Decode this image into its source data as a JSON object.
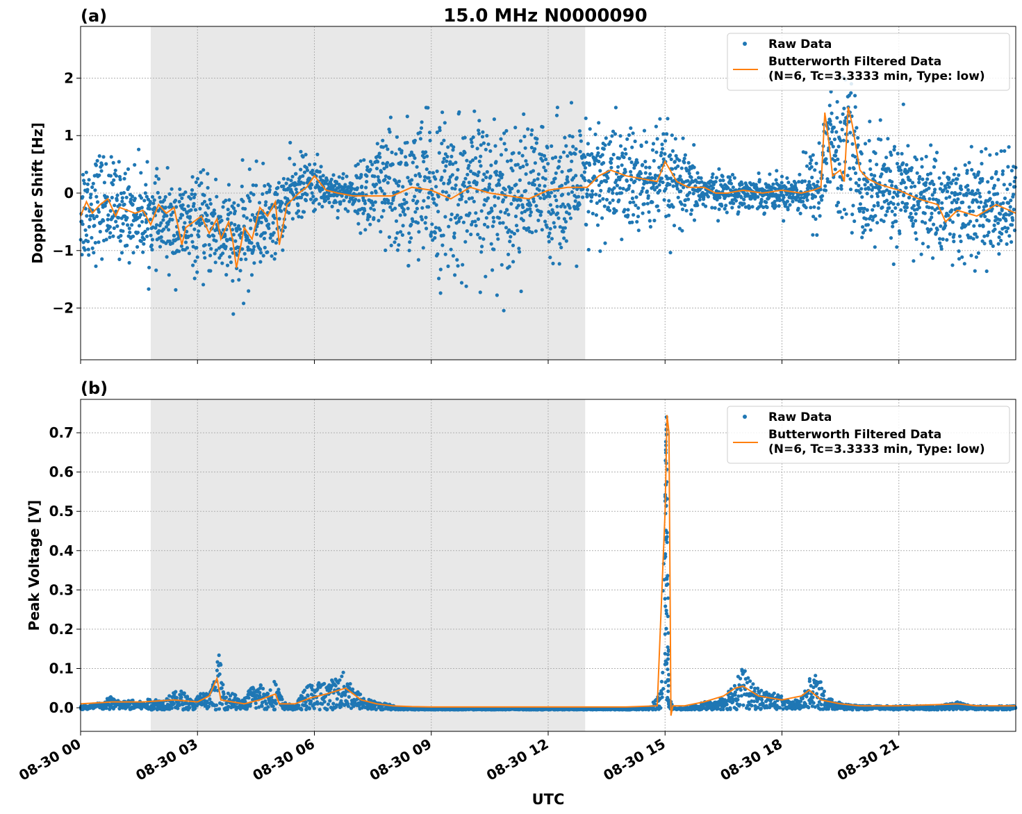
{
  "figure": {
    "title": "15.0 MHz N0000090",
    "xlabel": "UTC"
  },
  "colors": {
    "raw": "#1f77b4",
    "filtered": "#ff7f0e",
    "shade": "#e8e8e8",
    "grid": "#b0b0b0"
  },
  "chart_data": [
    {
      "type": "scatter",
      "panel_label": "(a)",
      "title": "15.0 MHz N0000090",
      "xlabel": "",
      "ylabel": "Doppler Shift [Hz]",
      "x_unit": "hours UTC since 08-30 00:00",
      "xlim": [
        0,
        24
      ],
      "ylim": [
        -2.9,
        2.9
      ],
      "yticks": [
        -2,
        -1,
        0,
        1,
        2
      ],
      "ytick_labels": [
        "−2",
        "−1",
        "0",
        "1",
        "2"
      ],
      "grid": true,
      "legend_position": "top-right",
      "shaded_interval_hours": [
        1.8,
        12.95
      ],
      "series": [
        {
          "name": "Raw Data",
          "style": "points",
          "envelope_note": "dense point cloud around filtered curve",
          "x": [
            0,
            0.5,
            1,
            1.5,
            2,
            2.5,
            3,
            3.5,
            4,
            4.5,
            5,
            5.5,
            6,
            6.5,
            7,
            7.5,
            8,
            9,
            10,
            11,
            12,
            13,
            13.5,
            14,
            14.5,
            15,
            15.5,
            16,
            17,
            18,
            18.5,
            19,
            19.2,
            19.5,
            19.7,
            20,
            21,
            22,
            23,
            24
          ],
          "center": [
            -0.3,
            -0.15,
            -0.3,
            -0.35,
            -0.5,
            -0.6,
            -0.55,
            -0.6,
            -0.9,
            -0.5,
            -0.45,
            0.1,
            0.15,
            0.05,
            0.0,
            0.0,
            0.0,
            0.0,
            -0.05,
            0.0,
            0.05,
            0.1,
            0.3,
            0.2,
            0.15,
            0.25,
            0.05,
            0.05,
            0.0,
            0.0,
            0.05,
            0.1,
            1.1,
            0.3,
            1.3,
            0.1,
            0.0,
            -0.2,
            -0.3,
            -0.2
          ],
          "spread": [
            0.9,
            0.8,
            0.7,
            0.7,
            0.6,
            0.7,
            0.7,
            0.8,
            0.8,
            0.8,
            0.6,
            0.5,
            0.4,
            0.3,
            0.3,
            0.8,
            1.1,
            1.2,
            1.2,
            1.1,
            1.0,
            1.0,
            0.9,
            0.9,
            0.8,
            0.8,
            0.6,
            0.3,
            0.25,
            0.25,
            0.4,
            0.8,
            1.0,
            0.9,
            1.0,
            0.9,
            0.8,
            0.8,
            0.8,
            0.8
          ]
        },
        {
          "name": "Butterworth Filtered Data",
          "name_line2": "(N=6, Tc=3.3333 min, Type: low)",
          "style": "line",
          "x": [
            0,
            0.15,
            0.3,
            0.5,
            0.7,
            0.9,
            1.0,
            1.2,
            1.4,
            1.6,
            1.8,
            2.0,
            2.2,
            2.4,
            2.6,
            2.7,
            2.9,
            3.1,
            3.3,
            3.5,
            3.6,
            3.8,
            3.9,
            4.0,
            4.2,
            4.4,
            4.6,
            4.8,
            5.0,
            5.1,
            5.3,
            5.6,
            5.8,
            6.0,
            6.3,
            6.6,
            7.0,
            7.5,
            8.0,
            8.5,
            9.0,
            9.5,
            10.0,
            10.5,
            11.0,
            11.5,
            12.0,
            12.5,
            13.0,
            13.3,
            13.6,
            14.0,
            14.4,
            14.8,
            15.0,
            15.3,
            15.6,
            16.0,
            16.3,
            16.6,
            17.0,
            17.5,
            18.0,
            18.5,
            18.8,
            19.0,
            19.1,
            19.2,
            19.3,
            19.5,
            19.6,
            19.7,
            19.8,
            20.0,
            20.2,
            20.5,
            21.0,
            21.5,
            22.0,
            22.2,
            22.5,
            23.0,
            23.5,
            24.0
          ],
          "y": [
            -0.4,
            -0.15,
            -0.35,
            -0.2,
            -0.1,
            -0.4,
            -0.25,
            -0.3,
            -0.35,
            -0.3,
            -0.55,
            -0.2,
            -0.35,
            -0.25,
            -0.9,
            -0.6,
            -0.5,
            -0.4,
            -0.7,
            -0.45,
            -0.8,
            -0.5,
            -0.8,
            -1.3,
            -0.6,
            -0.8,
            -0.25,
            -0.4,
            -0.15,
            -0.9,
            -0.2,
            0.0,
            0.1,
            0.3,
            0.05,
            0.0,
            -0.05,
            -0.05,
            -0.05,
            0.1,
            0.05,
            -0.1,
            0.1,
            0.0,
            -0.05,
            -0.1,
            0.05,
            0.1,
            0.1,
            0.3,
            0.4,
            0.3,
            0.25,
            0.2,
            0.55,
            0.2,
            0.1,
            0.1,
            0.0,
            0.0,
            0.05,
            0.0,
            0.05,
            0.0,
            0.05,
            0.1,
            1.4,
            0.9,
            0.3,
            0.4,
            0.2,
            1.5,
            1.2,
            0.4,
            0.25,
            0.15,
            0.05,
            -0.1,
            -0.2,
            -0.5,
            -0.3,
            -0.4,
            -0.2,
            -0.35
          ]
        }
      ]
    },
    {
      "type": "scatter",
      "panel_label": "(b)",
      "title": "",
      "xlabel": "UTC",
      "ylabel": "Peak Voltage [V]",
      "x_unit": "hours UTC since 08-30 00:00",
      "xlim": [
        0,
        24
      ],
      "ylim": [
        -0.06,
        0.785
      ],
      "yticks": [
        0.0,
        0.1,
        0.2,
        0.3,
        0.4,
        0.5,
        0.6,
        0.7
      ],
      "ytick_labels": [
        "0.0",
        "0.1",
        "0.2",
        "0.3",
        "0.4",
        "0.5",
        "0.6",
        "0.7"
      ],
      "xticks": [
        0,
        3,
        6,
        9,
        12,
        15,
        18,
        21
      ],
      "xtick_labels": [
        "08-30 00",
        "08-30 03",
        "08-30 06",
        "08-30 09",
        "08-30 12",
        "08-30 15",
        "08-30 18",
        "08-30 21"
      ],
      "grid": true,
      "legend_position": "top-right",
      "shaded_interval_hours": [
        1.8,
        12.95
      ],
      "series": [
        {
          "name": "Raw Data",
          "style": "points",
          "x": [
            0,
            0.3,
            0.6,
            0.8,
            1.0,
            1.3,
            1.6,
            1.8,
            2.1,
            2.4,
            2.6,
            2.9,
            3.1,
            3.3,
            3.45,
            3.55,
            3.7,
            3.9,
            4.1,
            4.4,
            4.6,
            4.8,
            5.0,
            5.2,
            5.5,
            5.8,
            6.0,
            6.3,
            6.5,
            6.8,
            7.0,
            7.3,
            7.6,
            7.9,
            8.2,
            9,
            10,
            11,
            12,
            13,
            14,
            14.6,
            14.9,
            15.0,
            15.05,
            15.1,
            15.2,
            15.5,
            16.0,
            16.3,
            16.6,
            16.8,
            17.0,
            17.2,
            17.5,
            17.9,
            18.2,
            18.5,
            18.7,
            18.9,
            19.2,
            19.6,
            20,
            21,
            22,
            22.5,
            23,
            24
          ],
          "y": [
            0.01,
            0.015,
            0.02,
            0.04,
            0.02,
            0.025,
            0.02,
            0.03,
            0.025,
            0.045,
            0.05,
            0.02,
            0.05,
            0.04,
            0.08,
            0.15,
            0.04,
            0.05,
            0.02,
            0.06,
            0.07,
            0.05,
            0.08,
            0.02,
            0.01,
            0.06,
            0.07,
            0.07,
            0.08,
            0.1,
            0.06,
            0.03,
            0.02,
            0.015,
            0.005,
            0.003,
            0.003,
            0.003,
            0.003,
            0.003,
            0.003,
            0.005,
            0.05,
            0.74,
            0.74,
            0.04,
            0.005,
            0.005,
            0.02,
            0.02,
            0.05,
            0.08,
            0.11,
            0.07,
            0.05,
            0.04,
            0.02,
            0.03,
            0.08,
            0.09,
            0.03,
            0.015,
            0.01,
            0.01,
            0.01,
            0.02,
            0.01,
            0.01
          ]
        },
        {
          "name": "Butterworth Filtered Data",
          "name_line2": "(N=6, Tc=3.3333 min, Type: low)",
          "style": "line",
          "x": [
            0,
            0.8,
            1.6,
            2.4,
            3.0,
            3.3,
            3.5,
            3.6,
            3.9,
            4.2,
            4.6,
            5.0,
            5.1,
            5.5,
            5.9,
            6.3,
            6.8,
            7.2,
            7.6,
            8.0,
            8.5,
            9,
            10,
            11,
            12,
            13,
            14,
            14.8,
            15.0,
            15.05,
            15.1,
            15.15,
            15.2,
            15.5,
            16.0,
            16.5,
            16.8,
            17.0,
            17.4,
            18.0,
            18.5,
            18.7,
            19.0,
            19.5,
            20,
            21,
            22,
            22.5,
            23,
            24
          ],
          "y": [
            0.01,
            0.015,
            0.015,
            0.02,
            0.015,
            0.03,
            0.075,
            0.02,
            0.015,
            0.01,
            0.02,
            0.035,
            0.01,
            0.01,
            0.025,
            0.035,
            0.05,
            0.02,
            0.01,
            0.005,
            0.003,
            0.002,
            0.002,
            0.002,
            0.002,
            0.002,
            0.002,
            0.005,
            0.5,
            0.745,
            0.7,
            -0.02,
            0.005,
            0.005,
            0.015,
            0.03,
            0.05,
            0.055,
            0.03,
            0.02,
            0.03,
            0.045,
            0.02,
            0.01,
            0.005,
            0.005,
            0.008,
            0.01,
            0.005,
            0.005
          ]
        }
      ]
    }
  ]
}
